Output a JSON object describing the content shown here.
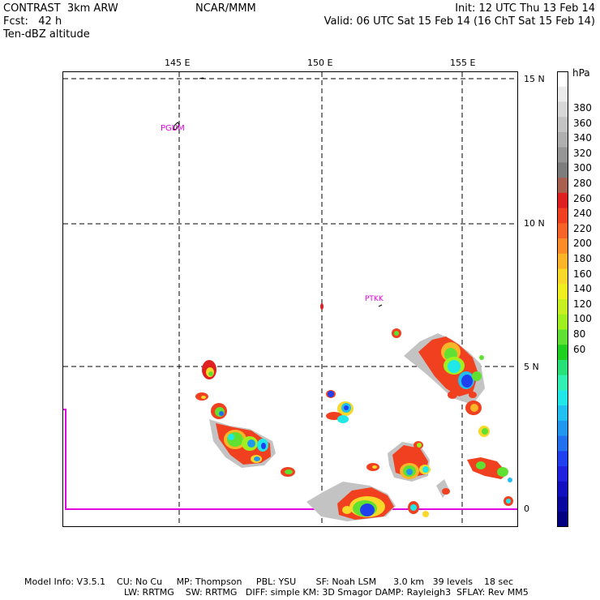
{
  "header": {
    "left_line1": "CONTRAST  3km ARW",
    "left_line2": "Fcst:   42 h",
    "left_line3": "Ten-dBZ altitude",
    "center": "NCAR/MMM",
    "right_line1": "Init: 12 UTC Thu 13 Feb 14",
    "right_line2": "Valid: 06 UTC Sat 15 Feb 14 (16 ChT Sat 15 Feb 14)"
  },
  "map": {
    "lon_labels": [
      "145 E",
      "150 E",
      "155 E"
    ],
    "lat_labels": [
      "15 N",
      "10 N",
      "5 N",
      "0"
    ],
    "stations": [
      "PGUM",
      "PTKK"
    ]
  },
  "colorbar": {
    "unit": "hPa",
    "labels": [
      "380",
      "360",
      "340",
      "320",
      "300",
      "280",
      "260",
      "240",
      "220",
      "200",
      "180",
      "160",
      "140",
      "120",
      "100",
      "80",
      "60"
    ],
    "colors": [
      "#ffffff",
      "#ebebeb",
      "#d7d7d7",
      "#c3c3c3",
      "#afafaf",
      "#969696",
      "#7d7d7d",
      "#a86050",
      "#e02020",
      "#f04020",
      "#f86428",
      "#fc8c28",
      "#fcb428",
      "#f8d828",
      "#f0f020",
      "#c8f020",
      "#a0f020",
      "#60e030",
      "#20d020",
      "#28e078",
      "#30f0b4",
      "#20e8e8",
      "#20c0f0",
      "#2098f0",
      "#2070f0",
      "#2040f0",
      "#2020e0",
      "#1010c0",
      "#0808a0",
      "#000080"
    ]
  },
  "footer": {
    "line1": "Model Info: V3.5.1    CU: No Cu     MP: Thompson     PBL: YSU       SF: Noah LSM      3.0 km   39 levels    18 sec",
    "line2": "LW: RRTMG    SW: RRTMG   DIFF: simple KM: 3D Smagor DAMP: Rayleigh3  SFLAY: Rev MM5"
  }
}
